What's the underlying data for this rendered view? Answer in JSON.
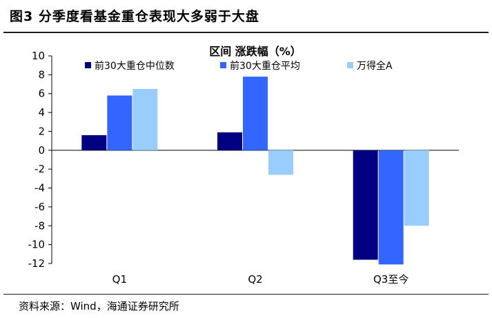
{
  "figure": {
    "title": "图3  分季度看基金重仓表现大多弱于大盘",
    "source": "资料来源：Wind，海通证券研究所"
  },
  "chart_data": {
    "type": "bar",
    "title": "区间 涨跌幅（%）",
    "categories": [
      "Q1",
      "Q2",
      "Q3至今"
    ],
    "series": [
      {
        "name": "前30大重仓中位数",
        "color": "#000080",
        "values": [
          1.6,
          1.9,
          -11.6
        ]
      },
      {
        "name": "前30大重仓平均",
        "color": "#3366FF",
        "values": [
          5.8,
          7.8,
          -12.1
        ]
      },
      {
        "name": "万得全A",
        "color": "#99CCFF",
        "values": [
          6.5,
          -2.6,
          -8.0
        ]
      }
    ],
    "yticks": [
      "10",
      "8",
      "6",
      "4",
      "2",
      "0",
      "-2",
      "-4",
      "-6",
      "-8",
      "-10",
      "-12"
    ],
    "ylim": [
      -12,
      10
    ],
    "xlabel": "",
    "ylabel": "",
    "grid": false,
    "legend": "top"
  }
}
